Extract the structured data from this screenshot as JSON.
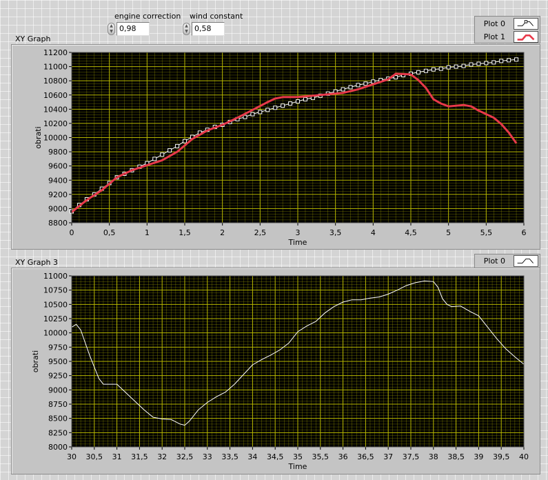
{
  "controls": {
    "engine_correction": {
      "label": "engine correction",
      "value": "0,98"
    },
    "wind_constant": {
      "label": "wind constant",
      "value": "0,58"
    }
  },
  "graphs": [
    {
      "title": "XY Graph",
      "legend": [
        {
          "name": "Plot 0",
          "color": "#ffffff",
          "style": "line-square-markers"
        },
        {
          "name": "Plot 1",
          "color": "#e8394a",
          "style": "thick-line"
        }
      ]
    },
    {
      "title": "XY Graph 3",
      "legend": [
        {
          "name": "Plot 0",
          "color": "#ffffff",
          "style": "thin-line"
        }
      ]
    }
  ],
  "colors": {
    "plot_bg": "#000000",
    "grid": "#b8b800",
    "plot1": "#e8394a",
    "plot0": "#ffffff"
  },
  "chart_data": [
    {
      "type": "line",
      "title": "XY Graph",
      "xlabel": "Time",
      "ylabel": "obrati",
      "xlim": [
        0,
        6
      ],
      "ylim": [
        8800,
        11200
      ],
      "grid": true,
      "legend_position": "top-right",
      "x_ticks": [
        "0",
        "0,5",
        "1",
        "1,5",
        "2",
        "2,5",
        "3",
        "3,5",
        "4",
        "4,5",
        "5",
        "5,5",
        "6"
      ],
      "y_ticks": [
        "8800",
        "9000",
        "9200",
        "9400",
        "9600",
        "9800",
        "10000",
        "10200",
        "10400",
        "10600",
        "10800",
        "11000",
        "11200"
      ],
      "series": [
        {
          "name": "Plot 0",
          "x": [
            0,
            0.1,
            0.2,
            0.3,
            0.4,
            0.5,
            0.6,
            0.7,
            0.8,
            0.9,
            1.0,
            1.1,
            1.2,
            1.3,
            1.4,
            1.5,
            1.6,
            1.7,
            1.8,
            1.9,
            2.0,
            2.1,
            2.2,
            2.3,
            2.4,
            2.5,
            2.6,
            2.7,
            2.8,
            2.9,
            3.0,
            3.1,
            3.2,
            3.3,
            3.4,
            3.5,
            3.6,
            3.7,
            3.8,
            3.9,
            4.0,
            4.1,
            4.2,
            4.3,
            4.4,
            4.5,
            4.6,
            4.7,
            4.8,
            4.9,
            5.0,
            5.1,
            5.2,
            5.3,
            5.4,
            5.5,
            5.6,
            5.7,
            5.8,
            5.9
          ],
          "y": [
            8960,
            9050,
            9130,
            9200,
            9280,
            9360,
            9440,
            9490,
            9540,
            9590,
            9640,
            9700,
            9760,
            9820,
            9880,
            9950,
            10010,
            10070,
            10110,
            10150,
            10180,
            10220,
            10260,
            10290,
            10330,
            10360,
            10390,
            10420,
            10450,
            10480,
            10510,
            10540,
            10560,
            10590,
            10620,
            10650,
            10680,
            10710,
            10740,
            10760,
            10790,
            10810,
            10830,
            10850,
            10880,
            10900,
            10920,
            10940,
            10960,
            10970,
            10990,
            11000,
            11010,
            11030,
            11040,
            11050,
            11060,
            11080,
            11090,
            11100
          ]
        },
        {
          "name": "Plot 1",
          "x": [
            0,
            0.2,
            0.4,
            0.6,
            0.8,
            1.0,
            1.2,
            1.4,
            1.6,
            1.8,
            2.0,
            2.2,
            2.4,
            2.6,
            2.7,
            2.8,
            3.0,
            3.2,
            3.4,
            3.6,
            3.8,
            4.0,
            4.2,
            4.3,
            4.5,
            4.6,
            4.7,
            4.8,
            4.9,
            5.0,
            5.1,
            5.2,
            5.3,
            5.4,
            5.5,
            5.6,
            5.7,
            5.8,
            5.9
          ],
          "y": [
            8950,
            9120,
            9260,
            9440,
            9540,
            9610,
            9680,
            9800,
            9980,
            10100,
            10180,
            10280,
            10390,
            10500,
            10550,
            10570,
            10570,
            10590,
            10610,
            10630,
            10680,
            10750,
            10820,
            10900,
            10890,
            10810,
            10700,
            10540,
            10480,
            10440,
            10450,
            10460,
            10440,
            10380,
            10330,
            10280,
            10190,
            10070,
            9920
          ]
        }
      ]
    },
    {
      "type": "line",
      "title": "XY Graph 3",
      "xlabel": "Time",
      "ylabel": "obrati",
      "xlim": [
        30,
        40
      ],
      "ylim": [
        8000,
        11000
      ],
      "grid": true,
      "legend_position": "top-right",
      "x_ticks": [
        "30",
        "30,5",
        "31",
        "31,5",
        "32",
        "32,5",
        "33",
        "33,5",
        "34",
        "34,5",
        "35",
        "35,5",
        "36",
        "36,5",
        "37",
        "37,5",
        "38",
        "38,5",
        "39",
        "39,5",
        "40"
      ],
      "y_ticks": [
        "8000",
        "8250",
        "8500",
        "8750",
        "9000",
        "9250",
        "9500",
        "9750",
        "10000",
        "10250",
        "10500",
        "10750",
        "11000"
      ],
      "series": [
        {
          "name": "Plot 0",
          "x": [
            30,
            30.1,
            30.2,
            30.4,
            30.6,
            30.7,
            31.0,
            31.2,
            31.4,
            31.6,
            31.8,
            32.0,
            32.2,
            32.4,
            32.5,
            32.6,
            32.8,
            33.0,
            33.2,
            33.4,
            33.6,
            33.8,
            34.0,
            34.2,
            34.4,
            34.6,
            34.8,
            35.0,
            35.2,
            35.4,
            35.6,
            35.8,
            36.0,
            36.2,
            36.4,
            36.6,
            36.8,
            37.0,
            37.2,
            37.4,
            37.6,
            37.8,
            38.0,
            38.1,
            38.2,
            38.3,
            38.4,
            38.6,
            38.8,
            39.0,
            39.2,
            39.4,
            39.6,
            39.8,
            40.0
          ],
          "y": [
            10100,
            10150,
            10050,
            9600,
            9200,
            9100,
            9100,
            8950,
            8800,
            8650,
            8520,
            8490,
            8480,
            8400,
            8380,
            8450,
            8650,
            8780,
            8880,
            8960,
            9100,
            9270,
            9440,
            9530,
            9610,
            9700,
            9820,
            10020,
            10120,
            10200,
            10350,
            10460,
            10540,
            10580,
            10580,
            10610,
            10630,
            10680,
            10750,
            10830,
            10880,
            10910,
            10900,
            10800,
            10600,
            10500,
            10460,
            10470,
            10380,
            10300,
            10100,
            9900,
            9720,
            9580,
            9450
          ]
        }
      ]
    }
  ]
}
